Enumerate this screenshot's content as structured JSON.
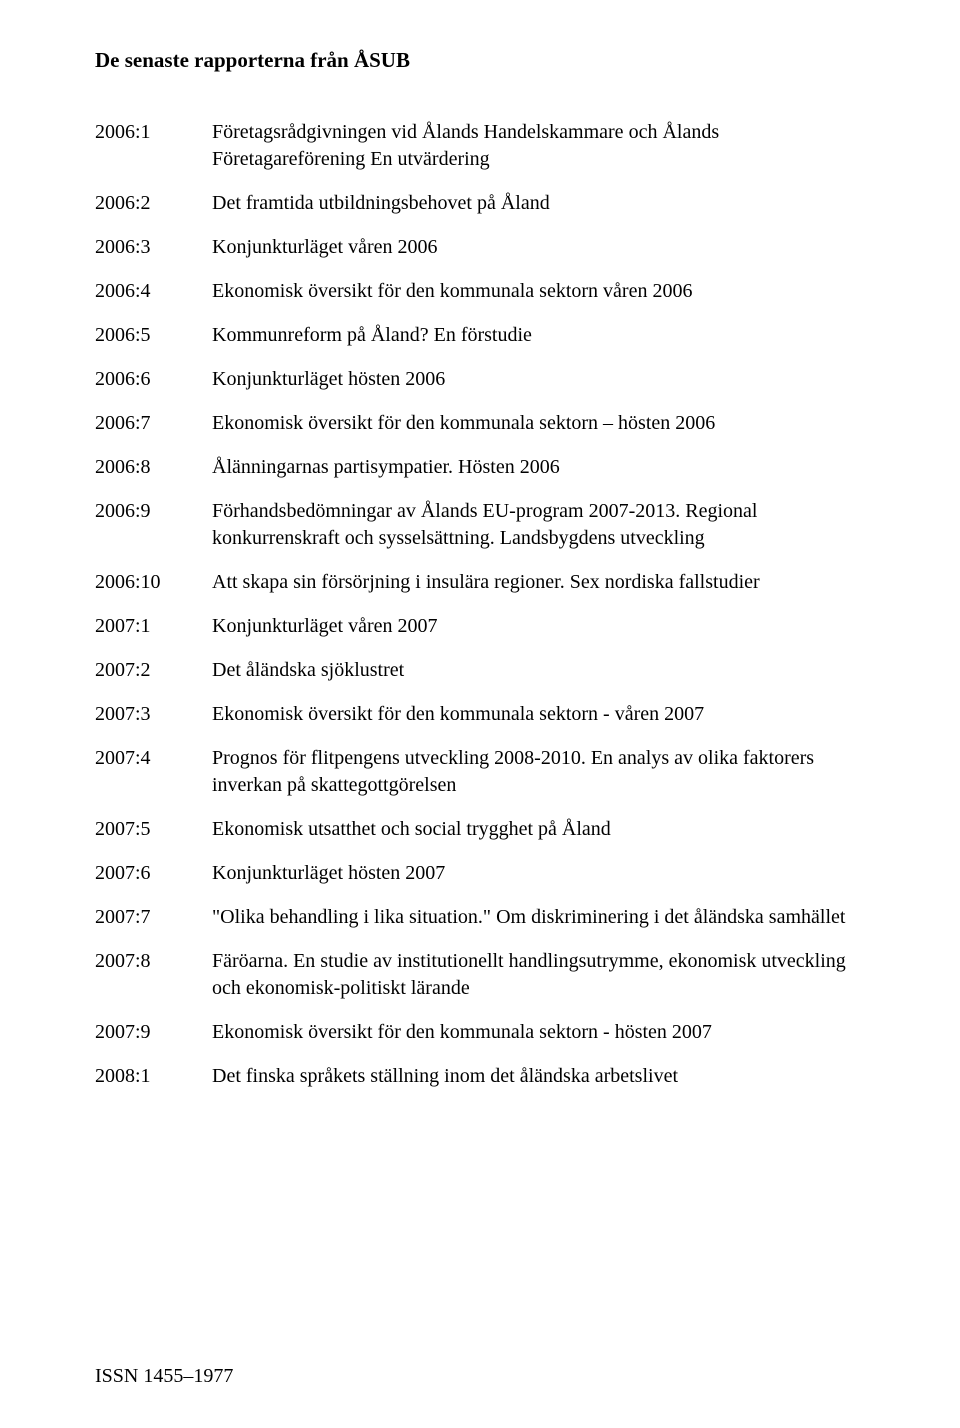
{
  "title": "De senaste rapporterna från ÅSUB",
  "rows": [
    {
      "code": "2006:1",
      "desc": "Företagsrådgivningen vid Ålands Handelskammare och Ålands Företagareförening En utvärdering"
    },
    {
      "code": "2006:2",
      "desc": "Det framtida utbildningsbehovet på Åland"
    },
    {
      "code": "2006:3",
      "desc": "Konjunkturläget våren 2006"
    },
    {
      "code": "2006:4",
      "desc": "Ekonomisk översikt för den kommunala sektorn våren 2006"
    },
    {
      "code": "2006:5",
      "desc": "Kommunreform på Åland? En förstudie"
    },
    {
      "code": "2006:6",
      "desc": "Konjunkturläget hösten 2006"
    },
    {
      "code": "2006:7",
      "desc": "Ekonomisk översikt för den kommunala sektorn – hösten 2006"
    },
    {
      "code": "2006:8",
      "desc": "Ålänningarnas partisympatier. Hösten 2006"
    },
    {
      "code": "2006:9",
      "desc": "Förhandsbedömningar av Ålands EU-program 2007-2013. Regional konkurrenskraft och sysselsättning. Landsbygdens utveckling"
    },
    {
      "code": "2006:10",
      "desc": "Att skapa sin försörjning i insulära regioner. Sex nordiska fallstudier"
    },
    {
      "code": "2007:1",
      "desc": "Konjunkturläget våren 2007"
    },
    {
      "code": "2007:2",
      "desc": "Det åländska sjöklustret"
    },
    {
      "code": "2007:3",
      "desc": "Ekonomisk översikt för den kommunala sektorn - våren 2007"
    },
    {
      "code": "2007:4",
      "desc": "Prognos för flitpengens utveckling 2008-2010. En analys av olika faktorers inverkan på skattegottgörelsen"
    },
    {
      "code": "2007:5",
      "desc": "Ekonomisk utsatthet och social trygghet på Åland"
    },
    {
      "code": "2007:6",
      "desc": "Konjunkturläget hösten 2007"
    },
    {
      "code": "2007:7",
      "desc": "\"Olika behandling i lika situation.\" Om diskriminering i det åländska samhället"
    },
    {
      "code": "2007:8",
      "desc": "Färöarna. En studie av institutionellt handlingsutrymme, ekonomisk utveckling och ekonomisk-politiskt lärande"
    },
    {
      "code": "2007:9",
      "desc": "Ekonomisk översikt för den kommunala sektorn - hösten 2007"
    },
    {
      "code": "2008:1",
      "desc": "Det finska språkets ställning inom det åländska arbetslivet"
    }
  ],
  "issn": "ISSN 1455–1977"
}
